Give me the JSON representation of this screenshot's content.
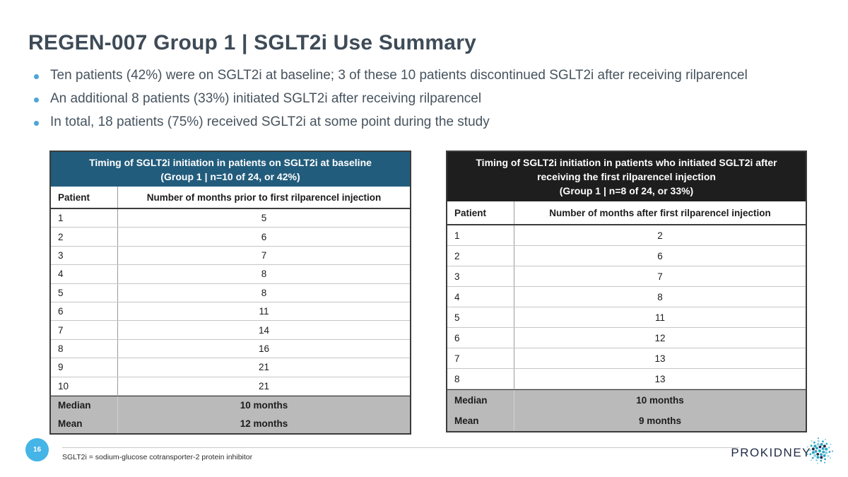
{
  "slide": {
    "title": "REGEN-007 Group 1 | SGLT2i Use Summary",
    "bullets": [
      "Ten patients (42%) were on SGLT2i at baseline; 3 of these 10 patients discontinued SGLT2i after receiving rilparencel",
      "An additional 8 patients (33%) initiated SGLT2i after receiving rilparencel",
      "In total, 18 patients (75%) received SGLT2i at some point during the study"
    ],
    "page_number": "16",
    "footnote": "SGLT2i = sodium-glucose cotransporter-2 protein inhibitor",
    "logo_text": "ProKidney"
  },
  "colors": {
    "title_text": "#3e4b57",
    "bullet_dot": "#4ba5da",
    "left_table_header_bg": "#225c7c",
    "right_table_header_bg": "#1e1e1e",
    "summary_row_bg": "#bababa",
    "page_badge_blue": "#45b4e7",
    "logo_navy": "#1f2b45",
    "logo_teal": "#2ba6c6"
  },
  "left_table": {
    "title_lines": [
      "Timing of SGLT2i initiation in patients on SGLT2i at baseline",
      "(Group 1 | n=10 of 24, or 42%)"
    ],
    "col_headers": [
      "Patient",
      "Number of months prior to first rilparencel injection"
    ],
    "rows": [
      {
        "patient": "1",
        "months": "5"
      },
      {
        "patient": "2",
        "months": "6"
      },
      {
        "patient": "3",
        "months": "7"
      },
      {
        "patient": "4",
        "months": "8"
      },
      {
        "patient": "5",
        "months": "8"
      },
      {
        "patient": "6",
        "months": "11"
      },
      {
        "patient": "7",
        "months": "14"
      },
      {
        "patient": "8",
        "months": "16"
      },
      {
        "patient": "9",
        "months": "21"
      },
      {
        "patient": "10",
        "months": "21"
      }
    ],
    "summary": [
      {
        "label": "Median",
        "months": "10 months"
      },
      {
        "label": "Mean",
        "months": "12 months"
      }
    ]
  },
  "right_table": {
    "title_lines": [
      "Timing of SGLT2i initiation in patients who initiated SGLT2i after",
      "receiving the first rilparencel injection",
      "(Group 1 | n=8 of 24, or 33%)"
    ],
    "col_headers": [
      "Patient",
      "Number of months after first rilparencel injection"
    ],
    "rows": [
      {
        "patient": "1",
        "months": "2"
      },
      {
        "patient": "2",
        "months": "6"
      },
      {
        "patient": "3",
        "months": "7"
      },
      {
        "patient": "4",
        "months": "8"
      },
      {
        "patient": "5",
        "months": "11"
      },
      {
        "patient": "6",
        "months": "12"
      },
      {
        "patient": "7",
        "months": "13"
      },
      {
        "patient": "8",
        "months": "13"
      }
    ],
    "summary": [
      {
        "label": "Median",
        "months": "10 months"
      },
      {
        "label": "Mean",
        "months": "9 months"
      }
    ]
  }
}
